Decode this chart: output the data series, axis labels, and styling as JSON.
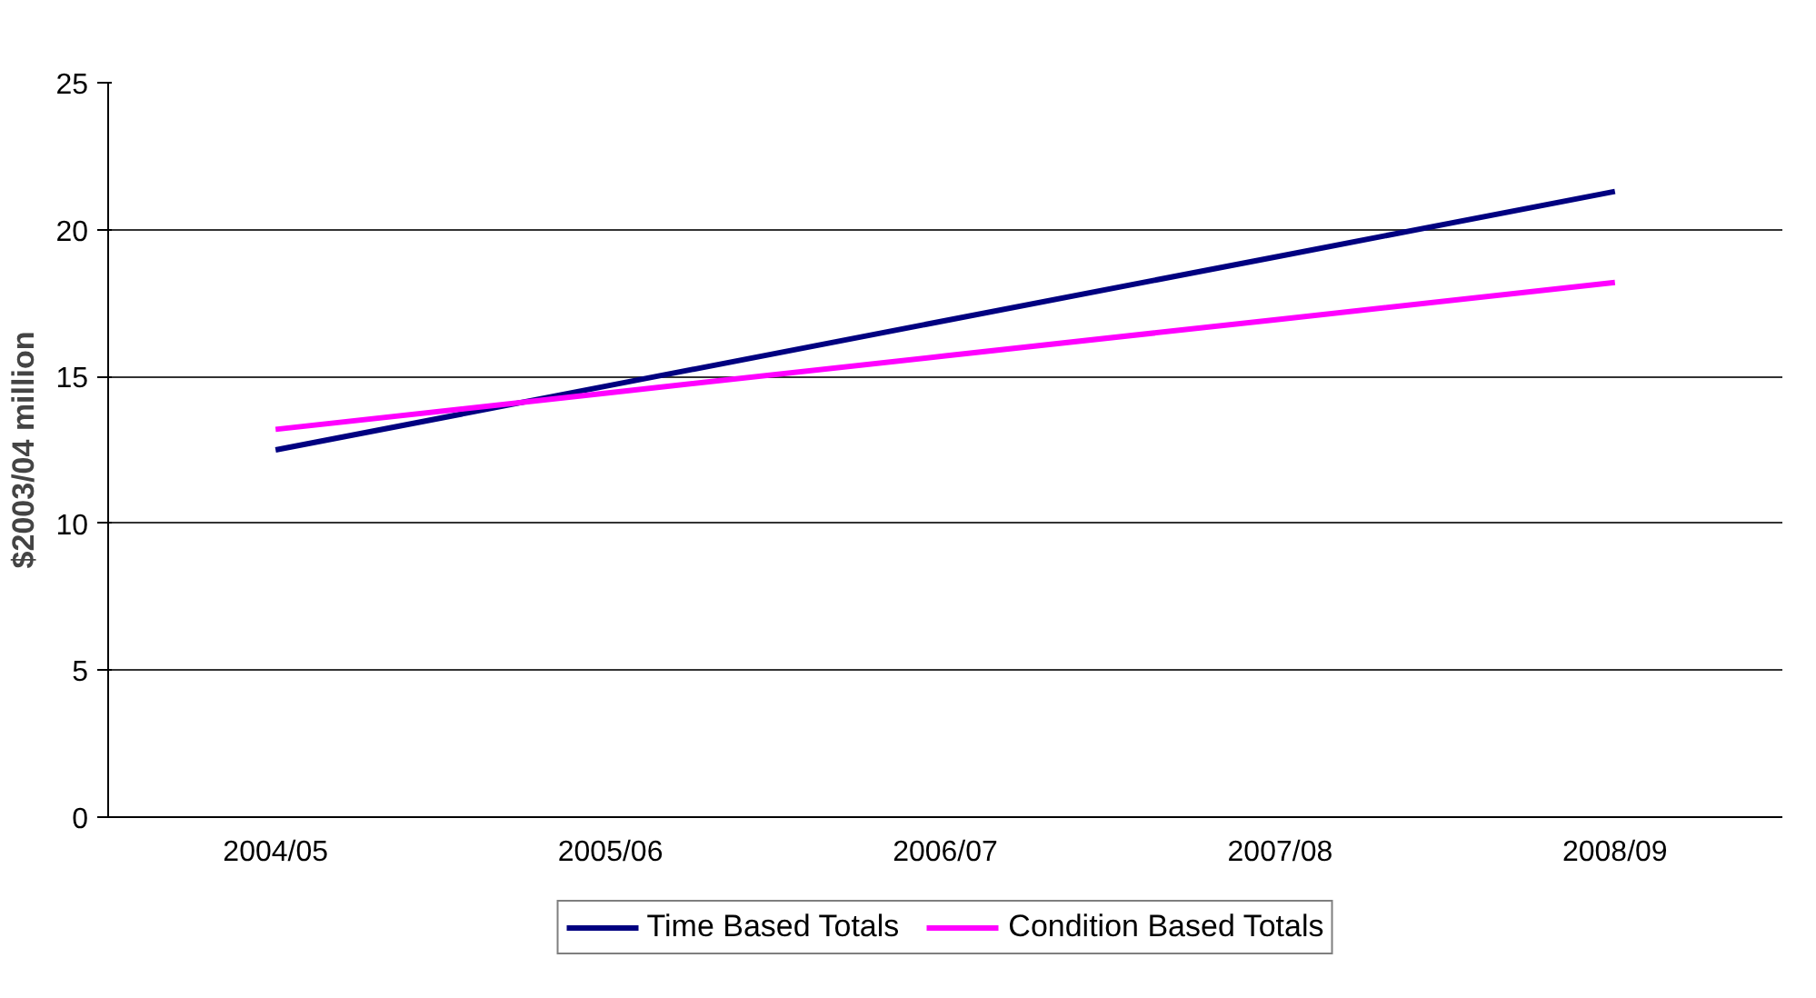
{
  "chart_data": {
    "type": "line",
    "ylabel": "$2003/04 million",
    "categories": [
      "2004/05",
      "2005/06",
      "2006/07",
      "2007/08",
      "2008/09"
    ],
    "series": [
      {
        "name": "Time Based Totals",
        "color": "#000080",
        "values": [
          12.5,
          14.7,
          16.9,
          19.1,
          21.3
        ]
      },
      {
        "name": "Condition Based Totals",
        "color": "#ff00ff",
        "values": [
          13.2,
          14.45,
          15.7,
          16.95,
          18.2
        ]
      }
    ],
    "ylim": [
      0,
      25
    ],
    "yticks": [
      0,
      5,
      10,
      15,
      20,
      25
    ],
    "grid": "y",
    "legend": "bottom",
    "marker": "none",
    "line_style": "solid"
  }
}
